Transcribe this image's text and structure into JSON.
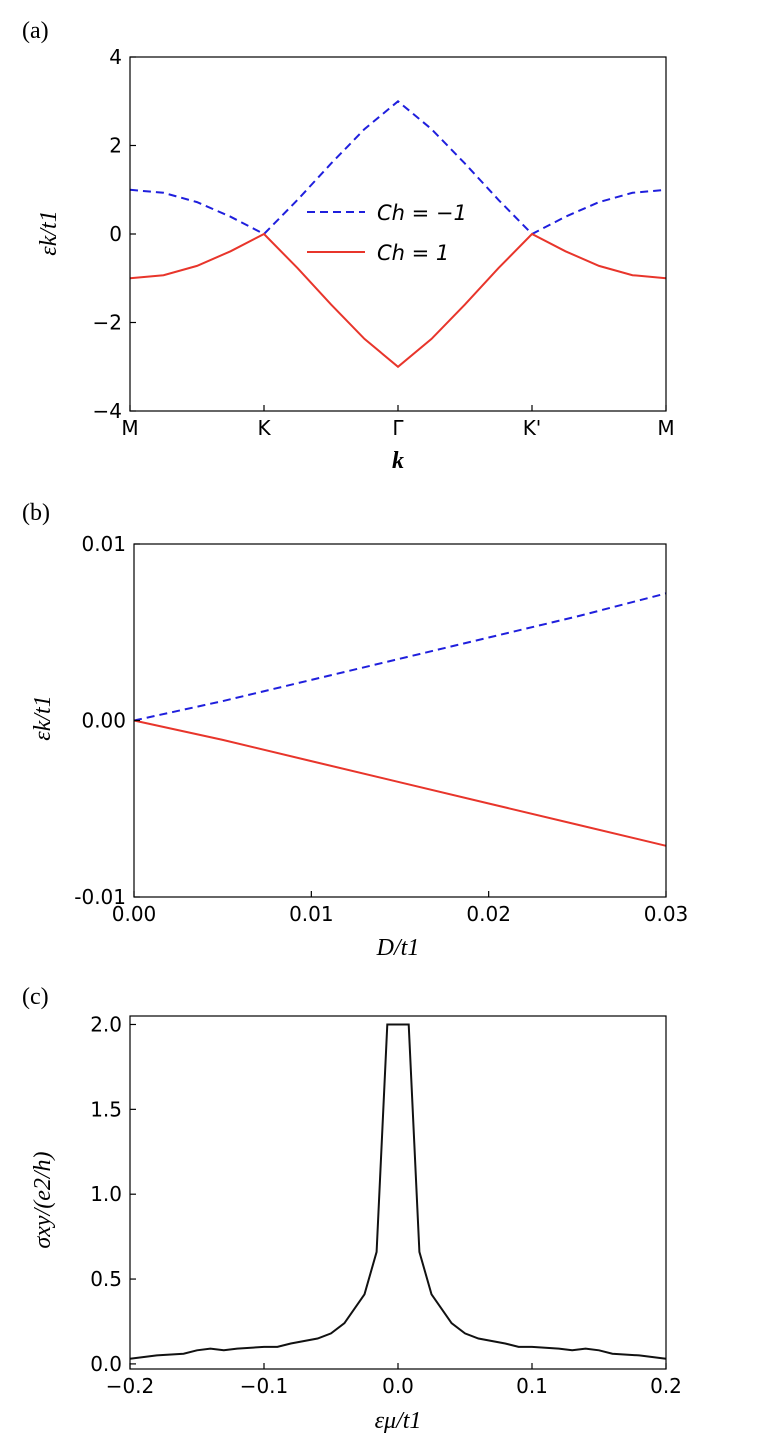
{
  "chart_data": [
    {
      "panel": "(a)",
      "type": "line",
      "xlabel": "k",
      "ylabel": "εk/t1",
      "xlim": [
        0,
        4
      ],
      "ylim": [
        -4,
        4
      ],
      "xticks": [
        {
          "value": 0,
          "label": "M"
        },
        {
          "value": 1,
          "label": "K"
        },
        {
          "value": 2,
          "label": "Γ"
        },
        {
          "value": 3,
          "label": "K'"
        },
        {
          "value": 4,
          "label": "M"
        }
      ],
      "yticks": [
        {
          "value": -4,
          "label": "−4"
        },
        {
          "value": -2,
          "label": "−2"
        },
        {
          "value": 0,
          "label": "0"
        },
        {
          "value": 2,
          "label": "2"
        },
        {
          "value": 4,
          "label": "4"
        }
      ],
      "legend": {
        "placement": "center"
      },
      "series": [
        {
          "name": "Ch = −1",
          "color": "#1f1fdd",
          "style": "dashed",
          "x": [
            0,
            0.25,
            0.5,
            0.75,
            1,
            1.25,
            1.5,
            1.75,
            2,
            2.25,
            2.5,
            2.75,
            3,
            3.25,
            3.5,
            3.75,
            4
          ],
          "y": [
            1.0,
            0.93,
            0.72,
            0.39,
            0.0,
            0.77,
            1.59,
            2.37,
            3.0,
            2.37,
            1.59,
            0.77,
            0.0,
            0.39,
            0.72,
            0.93,
            1.0
          ]
        },
        {
          "name": "Ch = 1",
          "color": "#e8352b",
          "style": "solid",
          "x": [
            0,
            0.25,
            0.5,
            0.75,
            1,
            1.25,
            1.5,
            1.75,
            2,
            2.25,
            2.5,
            2.75,
            3,
            3.25,
            3.5,
            3.75,
            4
          ],
          "y": [
            -1.0,
            -0.93,
            -0.72,
            -0.39,
            0.0,
            -0.77,
            -1.59,
            -2.37,
            -3.0,
            -2.37,
            -1.59,
            -0.77,
            0.0,
            -0.39,
            -0.72,
            -0.93,
            -1.0
          ]
        }
      ]
    },
    {
      "panel": "(b)",
      "type": "line",
      "xlabel": "D/t1",
      "ylabel": "εk/t1",
      "xlim": [
        0,
        0.03
      ],
      "ylim": [
        -0.01,
        0.01
      ],
      "xticks": [
        {
          "value": 0,
          "label": "0.00"
        },
        {
          "value": 0.01,
          "label": "0.01"
        },
        {
          "value": 0.02,
          "label": "0.02"
        },
        {
          "value": 0.03,
          "label": "0.03"
        }
      ],
      "yticks": [
        {
          "value": -0.01,
          "label": "-0.01"
        },
        {
          "value": 0,
          "label": "0.00"
        },
        {
          "value": 0.01,
          "label": "0.01"
        }
      ],
      "series": [
        {
          "color": "#1f1fdd",
          "style": "dashed",
          "x": [
            0,
            0.005,
            0.01,
            0.015,
            0.02,
            0.025,
            0.03
          ],
          "y": [
            0.0,
            0.0011,
            0.0023,
            0.0035,
            0.0047,
            0.0059,
            0.0072
          ]
        },
        {
          "color": "#e8352b",
          "style": "solid",
          "x": [
            0,
            0.005,
            0.01,
            0.015,
            0.02,
            0.025,
            0.03
          ],
          "y": [
            0.0,
            -0.0011,
            -0.0023,
            -0.0035,
            -0.0047,
            -0.0059,
            -0.0071
          ]
        }
      ]
    },
    {
      "panel": "(c)",
      "type": "line",
      "xlabel": "εμ/t1",
      "ylabel": "σxy/(e2/h)",
      "xlim": [
        -0.2,
        0.2
      ],
      "ylim": [
        -0.03,
        2.05
      ],
      "xticks": [
        {
          "value": -0.2,
          "label": "−0.2"
        },
        {
          "value": -0.1,
          "label": "−0.1"
        },
        {
          "value": 0,
          "label": "0.0"
        },
        {
          "value": 0.1,
          "label": "0.1"
        },
        {
          "value": 0.2,
          "label": "0.2"
        }
      ],
      "yticks": [
        {
          "value": 0,
          "label": "0.0"
        },
        {
          "value": 0.5,
          "label": "0.5"
        },
        {
          "value": 1,
          "label": "1.0"
        },
        {
          "value": 1.5,
          "label": "1.5"
        },
        {
          "value": 2,
          "label": "2.0"
        }
      ],
      "series": [
        {
          "color": "#111111",
          "style": "solid",
          "x": [
            -0.2,
            -0.18,
            -0.16,
            -0.15,
            -0.14,
            -0.13,
            -0.12,
            -0.1,
            -0.09,
            -0.08,
            -0.06,
            -0.05,
            -0.04,
            -0.025,
            -0.016,
            -0.008,
            0.008,
            0.016,
            0.025,
            0.04,
            0.05,
            0.06,
            0.08,
            0.09,
            0.1,
            0.12,
            0.13,
            0.14,
            0.15,
            0.16,
            0.18,
            0.2
          ],
          "y": [
            0.03,
            0.05,
            0.06,
            0.08,
            0.09,
            0.08,
            0.09,
            0.1,
            0.1,
            0.12,
            0.15,
            0.18,
            0.24,
            0.41,
            0.66,
            2.0,
            2.0,
            0.66,
            0.41,
            0.24,
            0.18,
            0.15,
            0.12,
            0.1,
            0.1,
            0.09,
            0.08,
            0.09,
            0.08,
            0.06,
            0.05,
            0.03
          ]
        }
      ]
    }
  ]
}
